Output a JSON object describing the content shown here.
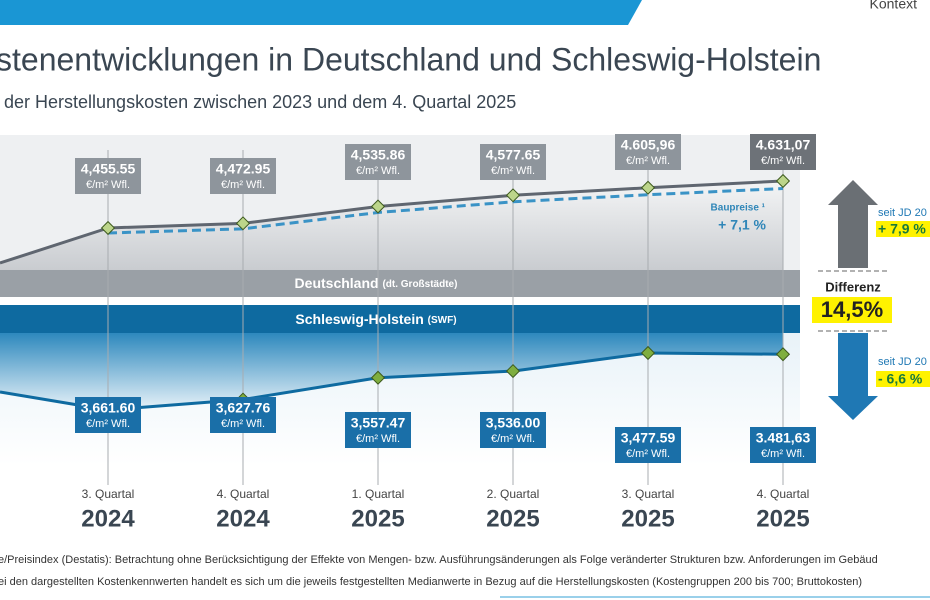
{
  "header": {
    "context": "Kontext"
  },
  "chart_data": {
    "type": "line",
    "title": "stenentwicklungen in Deutschland und Schleswig-Holstein",
    "subtitle": "der Herstellungskosten zwischen 2023 und dem 4. Quartal 2025",
    "categories": [
      [
        "3. Quartal",
        "2024"
      ],
      [
        "4. Quartal",
        "2024"
      ],
      [
        "1. Quartal",
        "2025"
      ],
      [
        "2. Quartal",
        "2025"
      ],
      [
        "3. Quartal",
        "2025"
      ],
      [
        "4. Quartal",
        "2025"
      ]
    ],
    "unit_label": "€/m² Wfl.",
    "series": [
      {
        "name": "Deutschland",
        "name_note": "(dt. Großstädte)",
        "color": "#5f6670",
        "values": [
          4455.55,
          4472.95,
          4535.86,
          4577.65,
          4605.96,
          4631.07
        ],
        "value_labels": [
          "4,455.55",
          "4,472.95",
          "4,535.86",
          "4,577.65",
          "4.605,96",
          "4.631,07"
        ],
        "change_label": "seit JD 20",
        "change": "+ 7,9 %"
      },
      {
        "name": "Schleswig-Holstein",
        "name_note": "(SWF)",
        "color": "#0e6aa0",
        "values": [
          3661.6,
          3627.76,
          3557.47,
          3536.0,
          3477.59,
          3481.63
        ],
        "value_labels": [
          "3,661.60",
          "3,627.76",
          "3,557.47",
          "3,536.00",
          "3,477.59",
          "3.481,63"
        ],
        "change_label": "seit JD 20",
        "change": "- 6,6 %"
      }
    ],
    "annotations": {
      "baupreise": "Baupreise ¹",
      "baupreise_change": "+ 7,1 %",
      "difference_label": "Differenz",
      "difference": "14,5%"
    },
    "footnotes": [
      "e/Preisindex (Destatis): Betrachtung ohne Berücksichtigung der Effekte von Mengen- bzw. Ausführungsänderungen als Folge veränderter Strukturen bzw. Anforderungen im Gebäud",
      "ei den dargestellten Kostenkennwerten handelt es sich um die jeweils festgestellten Medianwerte in Bezug auf die Herstellungskosten (Kostengruppen 200 bis 700; Bruttokosten)"
    ]
  }
}
